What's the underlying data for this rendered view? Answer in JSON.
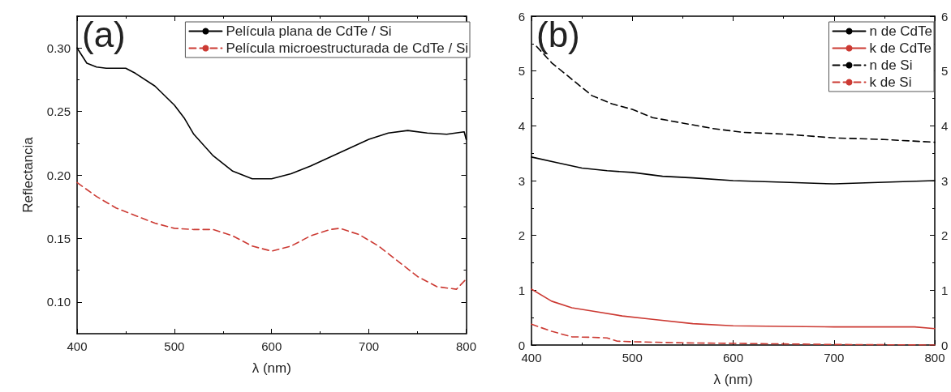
{
  "chart_data": [
    {
      "type": "line",
      "xlabel": "λ (nm)",
      "ylabel": "Reflectancia",
      "annotations": [
        "(a)"
      ],
      "xlim": [
        400,
        800
      ],
      "xticks": [
        400,
        500,
        600,
        700,
        800
      ],
      "ylim": [
        0.075,
        0.325
      ],
      "yticks": [
        {
          "value": 0.1,
          "label": "0.10"
        },
        0.15,
        {
          "value": 0.2,
          "label": "0.20"
        },
        0.25,
        {
          "value": 0.3,
          "label": "0.30"
        }
      ],
      "grid": false,
      "legend": "top right",
      "marker": "none",
      "series": [
        {
          "name": "Película plana de CdTe / Si",
          "color": "#000000",
          "line_style": "solid",
          "x": [
            400,
            410,
            420,
            430,
            450,
            460,
            480,
            500,
            510,
            520,
            540,
            560,
            580,
            600,
            620,
            640,
            660,
            680,
            700,
            720,
            740,
            760,
            780,
            798,
            800
          ],
          "values": [
            0.3,
            0.288,
            0.285,
            0.284,
            0.284,
            0.28,
            0.27,
            0.255,
            0.245,
            0.232,
            0.215,
            0.203,
            0.197,
            0.197,
            0.201,
            0.207,
            0.214,
            0.221,
            0.228,
            0.233,
            0.235,
            0.233,
            0.232,
            0.234,
            0.228
          ]
        },
        {
          "name": "Película microestructurada de CdTe / Si",
          "color": "#cc3a33",
          "line_style": "dashed",
          "x": [
            400,
            420,
            440,
            460,
            480,
            500,
            520,
            540,
            560,
            580,
            600,
            620,
            640,
            660,
            670,
            690,
            710,
            730,
            750,
            770,
            790,
            800
          ],
          "values": [
            0.194,
            0.183,
            0.174,
            0.168,
            0.162,
            0.158,
            0.157,
            0.157,
            0.152,
            0.144,
            0.14,
            0.144,
            0.152,
            0.157,
            0.158,
            0.153,
            0.144,
            0.132,
            0.12,
            0.112,
            0.11,
            0.118
          ]
        }
      ]
    },
    {
      "type": "line",
      "xlabel": "λ (nm)",
      "annotations": [
        "(b)"
      ],
      "xlim": [
        400,
        800
      ],
      "xticks": [
        400,
        500,
        600,
        700,
        800
      ],
      "ylim": [
        0,
        6
      ],
      "yticks": [
        0,
        1,
        2,
        3,
        4,
        5,
        6
      ],
      "y2lim": [
        0,
        6
      ],
      "y2ticks": [
        0,
        1,
        2,
        3,
        4,
        5,
        6
      ],
      "grid": false,
      "legend": "top right",
      "marker": "none",
      "series": [
        {
          "name": "n de CdTe",
          "color": "#000000",
          "line_style": "solid",
          "x": [
            400,
            425,
            450,
            475,
            500,
            530,
            560,
            600,
            650,
            700,
            750,
            800
          ],
          "values": [
            3.43,
            3.33,
            3.23,
            3.18,
            3.15,
            3.08,
            3.05,
            3.0,
            2.97,
            2.94,
            2.97,
            3.0
          ]
        },
        {
          "name": "k de CdTe",
          "color": "#cc3a33",
          "line_style": "solid",
          "x": [
            400,
            420,
            440,
            460,
            490,
            520,
            560,
            600,
            650,
            700,
            780,
            800
          ],
          "values": [
            1.02,
            0.8,
            0.68,
            0.62,
            0.53,
            0.47,
            0.39,
            0.35,
            0.34,
            0.33,
            0.33,
            0.3
          ]
        },
        {
          "name": "n de Si",
          "color": "#000000",
          "line_style": "dashed",
          "x": [
            405,
            420,
            440,
            460,
            480,
            500,
            520,
            550,
            580,
            610,
            650,
            700,
            750,
            800
          ],
          "values": [
            5.45,
            5.15,
            4.85,
            4.55,
            4.4,
            4.3,
            4.15,
            4.05,
            3.95,
            3.88,
            3.85,
            3.78,
            3.75,
            3.7
          ]
        },
        {
          "name": "k de Si",
          "color": "#cc3a33",
          "line_style": "dashed",
          "x": [
            400,
            420,
            440,
            460,
            475,
            485,
            500,
            550,
            600,
            650,
            700,
            800
          ],
          "values": [
            0.38,
            0.25,
            0.15,
            0.14,
            0.13,
            0.07,
            0.06,
            0.04,
            0.03,
            0.02,
            0.01,
            0.0
          ]
        }
      ]
    }
  ]
}
